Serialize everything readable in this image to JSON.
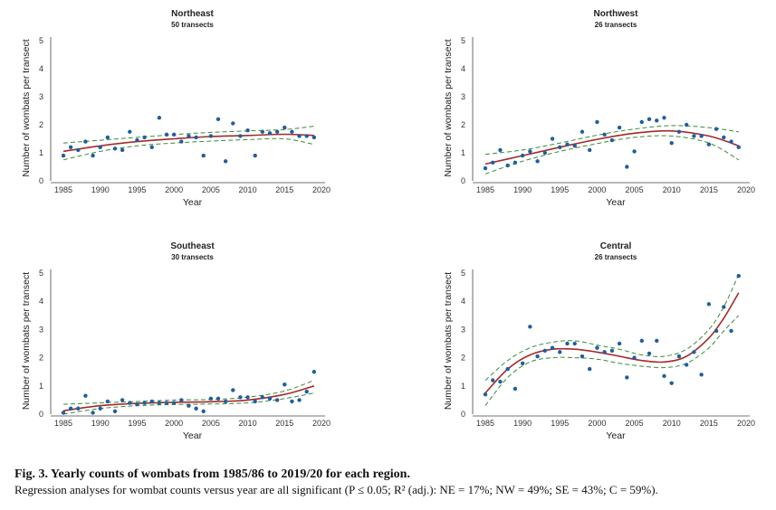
{
  "colors": {
    "points": "#1f5f9e",
    "fit": "#a52a2a",
    "ci": "#3a8a3a",
    "axis": "#444444"
  },
  "chart_data": [
    {
      "type": "scatter",
      "title": "Northeast",
      "subtitle": "50 transects",
      "xlabel": "Year",
      "ylabel": "Number of wombats per transect",
      "xlim": [
        1985,
        2020
      ],
      "ylim": [
        0,
        5
      ],
      "xticks": [
        1985,
        1990,
        1995,
        2000,
        2005,
        2010,
        2015,
        2020
      ],
      "yticks": [
        0,
        1,
        2,
        3,
        4,
        5
      ],
      "x": [
        1985,
        1986,
        1987,
        1988,
        1989,
        1990,
        1991,
        1992,
        1993,
        1994,
        1995,
        1996,
        1997,
        1998,
        1999,
        2000,
        2001,
        2002,
        2003,
        2004,
        2005,
        2006,
        2007,
        2008,
        2009,
        2010,
        2011,
        2012,
        2013,
        2014,
        2015,
        2016,
        2017,
        2018,
        2019
      ],
      "y": [
        0.9,
        1.2,
        1.1,
        1.4,
        0.9,
        1.2,
        1.55,
        1.15,
        1.1,
        1.75,
        1.45,
        1.55,
        1.2,
        2.25,
        1.65,
        1.65,
        1.4,
        1.6,
        1.55,
        0.9,
        1.6,
        2.2,
        0.7,
        2.05,
        1.6,
        1.8,
        0.9,
        1.75,
        1.7,
        1.75,
        1.9,
        1.75,
        1.6,
        1.6,
        1.55
      ],
      "fit": {
        "x": [
          1985,
          1990,
          1995,
          2000,
          2005,
          2010,
          2015,
          2019
        ],
        "y": [
          1.05,
          1.25,
          1.4,
          1.5,
          1.58,
          1.62,
          1.66,
          1.62
        ]
      },
      "ci_upper": {
        "x": [
          1985,
          1990,
          1995,
          2000,
          2005,
          2010,
          2015,
          2019
        ],
        "y": [
          1.35,
          1.45,
          1.55,
          1.65,
          1.73,
          1.78,
          1.83,
          1.95
        ]
      },
      "ci_lower": {
        "x": [
          1985,
          1990,
          1995,
          2000,
          2005,
          2010,
          2015,
          2019
        ],
        "y": [
          0.75,
          1.05,
          1.25,
          1.35,
          1.42,
          1.47,
          1.5,
          1.3
        ]
      }
    },
    {
      "type": "scatter",
      "title": "Northwest",
      "subtitle": "26 transects",
      "xlabel": "Year",
      "ylabel": "Number of wombats per transect",
      "xlim": [
        1985,
        2020
      ],
      "ylim": [
        0,
        5
      ],
      "xticks": [
        1985,
        1990,
        1995,
        2000,
        2005,
        2010,
        2015,
        2020
      ],
      "yticks": [
        0,
        1,
        2,
        3,
        4,
        5
      ],
      "x": [
        1985,
        1986,
        1987,
        1988,
        1989,
        1990,
        1991,
        1992,
        1993,
        1994,
        1995,
        1996,
        1997,
        1998,
        1999,
        2000,
        2001,
        2002,
        2003,
        2004,
        2005,
        2006,
        2007,
        2008,
        2009,
        2010,
        2011,
        2012,
        2013,
        2014,
        2015,
        2016,
        2017,
        2018,
        2019
      ],
      "y": [
        0.45,
        0.65,
        1.1,
        0.55,
        0.65,
        0.9,
        1.05,
        0.7,
        1.0,
        1.5,
        1.2,
        1.3,
        1.25,
        1.75,
        1.1,
        2.1,
        1.65,
        1.45,
        1.9,
        0.5,
        1.05,
        2.1,
        2.2,
        2.15,
        2.25,
        1.35,
        1.75,
        2.0,
        1.6,
        1.6,
        1.3,
        1.85,
        1.55,
        1.4,
        1.2
      ],
      "fit": {
        "x": [
          1985,
          1990,
          1995,
          2000,
          2005,
          2010,
          2015,
          2019
        ],
        "y": [
          0.6,
          0.9,
          1.2,
          1.48,
          1.7,
          1.78,
          1.6,
          1.25
        ]
      },
      "ci_upper": {
        "x": [
          1985,
          1990,
          1995,
          2000,
          2005,
          2010,
          2015,
          2019
        ],
        "y": [
          0.95,
          1.1,
          1.35,
          1.63,
          1.85,
          1.97,
          1.9,
          1.75
        ]
      },
      "ci_lower": {
        "x": [
          1985,
          1990,
          1995,
          2000,
          2005,
          2010,
          2015,
          2019
        ],
        "y": [
          0.25,
          0.7,
          1.05,
          1.33,
          1.55,
          1.6,
          1.35,
          0.75
        ]
      }
    },
    {
      "type": "scatter",
      "title": "Southeast",
      "subtitle": "30 transects",
      "xlabel": "Year",
      "ylabel": "Number of wombats per transect",
      "xlim": [
        1985,
        2020
      ],
      "ylim": [
        0,
        5
      ],
      "xticks": [
        1985,
        1990,
        1995,
        2000,
        2005,
        2010,
        2015,
        2020
      ],
      "yticks": [
        0,
        1,
        2,
        3,
        4,
        5
      ],
      "x": [
        1985,
        1986,
        1987,
        1988,
        1989,
        1990,
        1991,
        1992,
        1993,
        1994,
        1995,
        1996,
        1997,
        1998,
        1999,
        2000,
        2001,
        2002,
        2003,
        2004,
        2005,
        2006,
        2007,
        2008,
        2009,
        2010,
        2011,
        2012,
        2013,
        2014,
        2015,
        2016,
        2017,
        2018,
        2019
      ],
      "y": [
        0.05,
        0.2,
        0.2,
        0.65,
        0.05,
        0.2,
        0.45,
        0.1,
        0.5,
        0.4,
        0.35,
        0.4,
        0.45,
        0.4,
        0.4,
        0.4,
        0.5,
        0.3,
        0.2,
        0.1,
        0.55,
        0.55,
        0.45,
        0.85,
        0.6,
        0.6,
        0.45,
        0.6,
        0.55,
        0.5,
        1.05,
        0.45,
        0.5,
        0.8,
        1.5
      ],
      "fit": {
        "x": [
          1985,
          1990,
          1995,
          2000,
          2005,
          2010,
          2015,
          2019
        ],
        "y": [
          0.12,
          0.3,
          0.38,
          0.42,
          0.44,
          0.5,
          0.7,
          1.0
        ]
      },
      "ci_upper": {
        "x": [
          1985,
          1990,
          1995,
          2000,
          2005,
          2010,
          2015,
          2019
        ],
        "y": [
          0.35,
          0.4,
          0.45,
          0.5,
          0.52,
          0.6,
          0.82,
          1.2
        ]
      },
      "ci_lower": {
        "x": [
          1985,
          1990,
          1995,
          2000,
          2005,
          2010,
          2015,
          2019
        ],
        "y": [
          0.0,
          0.2,
          0.3,
          0.34,
          0.36,
          0.4,
          0.55,
          0.75
        ]
      }
    },
    {
      "type": "scatter",
      "title": "Central",
      "subtitle": "26 transects",
      "xlabel": "Year",
      "ylabel": "Number of wombats per transect",
      "xlim": [
        1985,
        2020
      ],
      "ylim": [
        0,
        5
      ],
      "xticks": [
        1985,
        1990,
        1995,
        2000,
        2005,
        2010,
        2015,
        2020
      ],
      "yticks": [
        0,
        1,
        2,
        3,
        4,
        5
      ],
      "x": [
        1985,
        1986,
        1987,
        1988,
        1989,
        1990,
        1991,
        1992,
        1993,
        1994,
        1995,
        1996,
        1997,
        1998,
        1999,
        2000,
        2001,
        2002,
        2003,
        2004,
        2005,
        2006,
        2007,
        2008,
        2009,
        2010,
        2011,
        2012,
        2013,
        2014,
        2015,
        2016,
        2017,
        2018,
        2019
      ],
      "y": [
        0.7,
        1.2,
        1.15,
        1.6,
        0.9,
        1.8,
        3.1,
        2.05,
        2.25,
        2.35,
        2.2,
        2.5,
        2.5,
        2.05,
        1.6,
        2.35,
        2.2,
        2.25,
        2.5,
        1.3,
        2.0,
        2.6,
        2.15,
        2.6,
        1.35,
        1.1,
        2.05,
        1.75,
        2.2,
        1.4,
        3.9,
        2.95,
        3.8,
        2.95,
        4.9
      ],
      "fit": {
        "x": [
          1985,
          1988,
          1991,
          1994,
          1997,
          2000,
          2003,
          2006,
          2009,
          2012,
          2015,
          2017,
          2019
        ],
        "y": [
          0.75,
          1.6,
          2.1,
          2.3,
          2.3,
          2.2,
          2.05,
          1.9,
          1.85,
          2.05,
          2.7,
          3.4,
          4.3
        ]
      },
      "ci_upper": {
        "x": [
          1985,
          1988,
          1991,
          1994,
          1997,
          2000,
          2003,
          2006,
          2009,
          2012,
          2015,
          2017,
          2019
        ],
        "y": [
          1.2,
          1.9,
          2.35,
          2.55,
          2.6,
          2.45,
          2.3,
          2.1,
          2.05,
          2.3,
          3.0,
          3.8,
          4.95
        ]
      },
      "ci_lower": {
        "x": [
          1985,
          1988,
          1991,
          1994,
          1997,
          2000,
          2003,
          2006,
          2009,
          2012,
          2015,
          2017,
          2019
        ],
        "y": [
          0.3,
          1.3,
          1.85,
          2.0,
          2.0,
          1.95,
          1.8,
          1.7,
          1.65,
          1.8,
          2.35,
          2.95,
          3.5
        ]
      }
    }
  ],
  "caption": {
    "title": "Fig. 3. Yearly counts of wombats from 1985/86 to 2019/20 for each region.",
    "text": "Regression analyses for wombat counts versus year are all significant (P ≤ 0.05; R² (adj.): NE = 17%; NW = 49%; SE = 43%; C = 59%)."
  }
}
